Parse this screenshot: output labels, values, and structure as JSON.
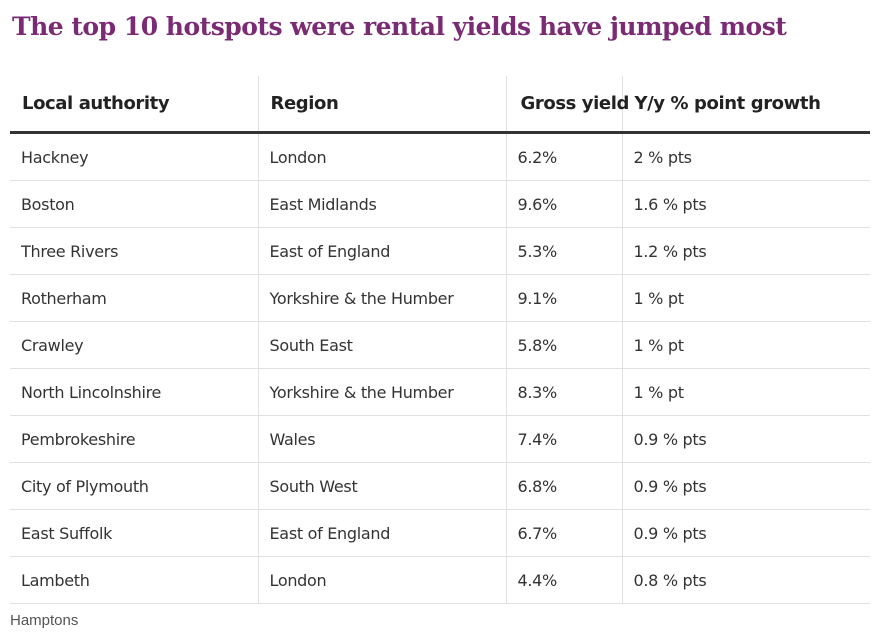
{
  "title": "The top 10 hotspots were rental yields have jumped most",
  "source": "Hamptons",
  "colors": {
    "title": "#7a2b74",
    "header_rule": "#333333",
    "grid": "#e0e0e0"
  },
  "chart_data": {
    "type": "table",
    "columns": [
      "Local authority",
      "Region",
      "Gross yield",
      "Y/y % point growth"
    ],
    "rows": [
      [
        "Hackney",
        "London",
        "6.2%",
        "2 % pts"
      ],
      [
        "Boston",
        "East Midlands",
        "9.6%",
        "1.6 % pts"
      ],
      [
        "Three Rivers",
        "East of England",
        "5.3%",
        "1.2 % pts"
      ],
      [
        "Rotherham",
        "Yorkshire & the Humber",
        "9.1%",
        "1 % pt"
      ],
      [
        "Crawley",
        "South East",
        "5.8%",
        "1 % pt"
      ],
      [
        "North Lincolnshire",
        "Yorkshire & the Humber",
        "8.3%",
        "1 % pt"
      ],
      [
        "Pembrokeshire",
        "Wales",
        "7.4%",
        "0.9 % pts"
      ],
      [
        "City of Plymouth",
        "South West",
        "6.8%",
        "0.9 % pts"
      ],
      [
        "East Suffolk",
        "East of England",
        "6.7%",
        "0.9 % pts"
      ],
      [
        "Lambeth",
        "London",
        "4.4%",
        "0.8 % pts"
      ]
    ]
  }
}
